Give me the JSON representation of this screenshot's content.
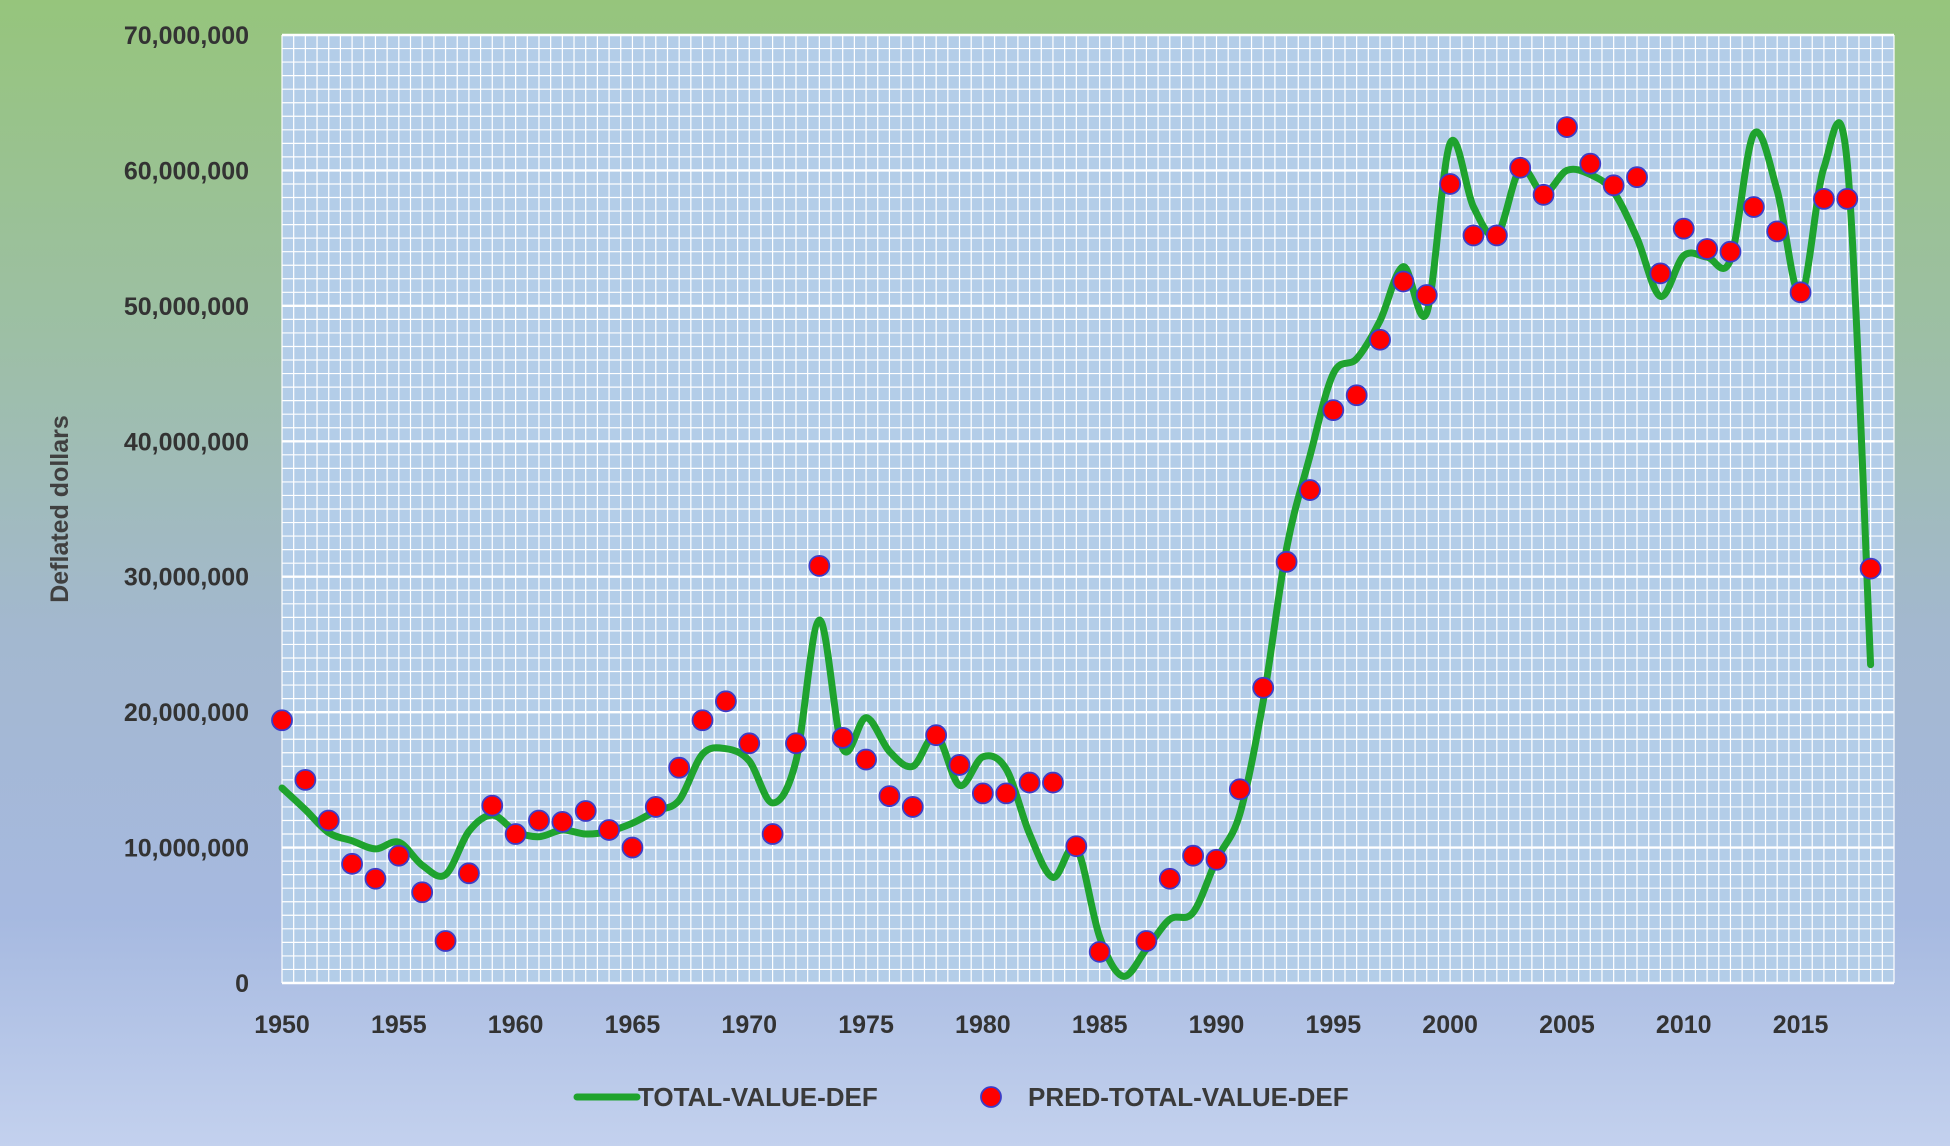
{
  "chart_data": {
    "type": "line",
    "title": "",
    "xlabel": "",
    "ylabel": "Deflated dollars",
    "xlim": [
      1950,
      2019
    ],
    "ylim": [
      0,
      70000000
    ],
    "x_ticks": [
      1950,
      1955,
      1960,
      1965,
      1970,
      1975,
      1980,
      1985,
      1990,
      1995,
      2000,
      2005,
      2010,
      2015
    ],
    "y_ticks": [
      0,
      10000000,
      20000000,
      30000000,
      40000000,
      50000000,
      60000000,
      70000000
    ],
    "y_tick_labels": [
      "0",
      "10,000,000",
      "20,000,000",
      "30,000,000",
      "40,000,000",
      "50,000,000",
      "60,000,000",
      "70,000,000"
    ],
    "grid": true,
    "legend_position": "bottom",
    "x": [
      1950,
      1951,
      1952,
      1953,
      1954,
      1955,
      1956,
      1957,
      1958,
      1959,
      1960,
      1961,
      1962,
      1963,
      1964,
      1965,
      1966,
      1967,
      1968,
      1969,
      1970,
      1971,
      1972,
      1973,
      1974,
      1975,
      1976,
      1977,
      1978,
      1979,
      1980,
      1981,
      1982,
      1983,
      1984,
      1985,
      1986,
      1987,
      1988,
      1989,
      1990,
      1991,
      1992,
      1993,
      1994,
      1995,
      1996,
      1997,
      1998,
      1999,
      2000,
      2001,
      2002,
      2003,
      2004,
      2005,
      2006,
      2007,
      2008,
      2009,
      2010,
      2011,
      2012,
      2013,
      2014,
      2015,
      2016,
      2017,
      2018
    ],
    "series": [
      {
        "name": "TOTAL-VALUE-DEF",
        "kind": "line",
        "color": "#1fa32e",
        "values": [
          14400000,
          12800000,
          11100000,
          10500000,
          9900000,
          10400000,
          8700000,
          8000000,
          11200000,
          12400000,
          11200000,
          10800000,
          11300000,
          11000000,
          11200000,
          11800000,
          12700000,
          13500000,
          16900000,
          17300000,
          16400000,
          13300000,
          16400000,
          26800000,
          17300000,
          19600000,
          17100000,
          16000000,
          18300000,
          14600000,
          16700000,
          15800000,
          11000000,
          7800000,
          10000000,
          3400000,
          500000,
          2500000,
          4700000,
          5200000,
          9100000,
          12500000,
          20800000,
          32100000,
          38900000,
          45000000,
          46100000,
          48900000,
          52900000,
          49500000,
          62000000,
          57300000,
          55200000,
          60100000,
          58300000,
          60000000,
          59700000,
          58400000,
          55000000,
          50700000,
          53700000,
          53600000,
          53400000,
          62700000,
          58500000,
          50800000,
          60200000,
          60500000,
          23500000
        ]
      },
      {
        "name": "PRED-TOTAL-VALUE-DEF",
        "kind": "scatter",
        "color": "#ff0000",
        "edge_color": "#3d3dc8",
        "values": [
          19400000,
          15000000,
          12000000,
          8800000,
          7700000,
          9400000,
          6700000,
          3100000,
          8100000,
          13100000,
          11000000,
          12000000,
          11900000,
          12700000,
          11300000,
          10000000,
          13000000,
          15900000,
          19400000,
          20800000,
          17700000,
          11000000,
          17700000,
          30800000,
          18100000,
          16500000,
          13800000,
          13000000,
          18300000,
          16100000,
          14000000,
          14000000,
          14800000,
          14800000,
          10100000,
          2300000,
          null,
          3100000,
          7700000,
          9400000,
          9100000,
          14300000,
          21800000,
          31100000,
          36400000,
          42300000,
          43400000,
          47500000,
          51800000,
          50800000,
          59000000,
          55200000,
          55200000,
          60200000,
          58200000,
          63200000,
          60500000,
          58900000,
          59500000,
          52400000,
          55700000,
          54200000,
          54000000,
          57300000,
          55500000,
          51000000,
          57900000,
          57900000,
          30600000
        ]
      }
    ]
  }
}
